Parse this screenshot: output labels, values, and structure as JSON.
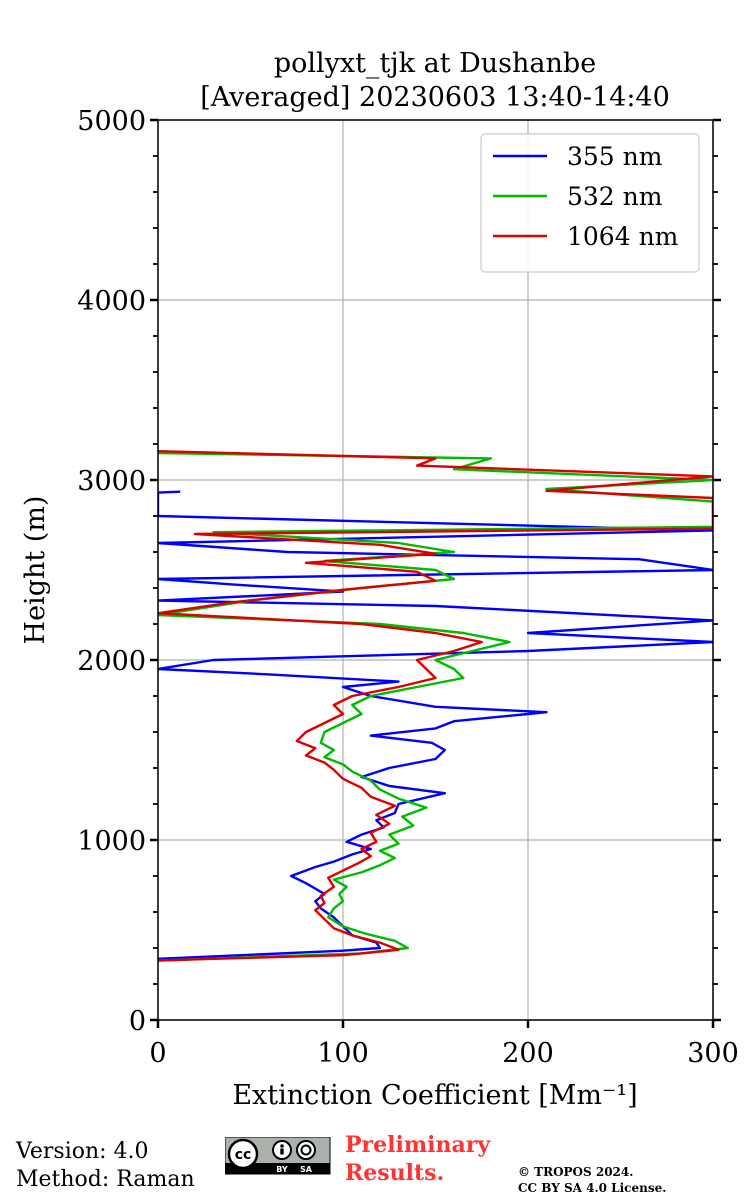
{
  "chart_data": {
    "type": "line",
    "title": "pollyxt_tjk at Dushanbe",
    "subtitle": "[Averaged] 20230603 13:40-14:40",
    "xlabel": "Extinction Coefficient [Mm⁻¹]",
    "ylabel": "Height (m)",
    "xlim": [
      0,
      300
    ],
    "ylim": [
      0,
      5000
    ],
    "xticks": [
      0,
      100,
      200,
      300
    ],
    "yticks": [
      0,
      1000,
      2000,
      3000,
      4000,
      5000
    ],
    "grid": true,
    "legend_position": "top-right",
    "series": [
      {
        "name": "355 nm",
        "color": "#0000ff",
        "points": [
          [
            0,
            340
          ],
          [
            45,
            360
          ],
          [
            100,
            385
          ],
          [
            120,
            400
          ],
          [
            118,
            430
          ],
          [
            105,
            470
          ],
          [
            100,
            520
          ],
          [
            95,
            570
          ],
          [
            88,
            620
          ],
          [
            85,
            660
          ],
          [
            90,
            700
          ],
          [
            80,
            760
          ],
          [
            72,
            800
          ],
          [
            85,
            850
          ],
          [
            95,
            880
          ],
          [
            105,
            920
          ],
          [
            115,
            950
          ],
          [
            102,
            990
          ],
          [
            110,
            1030
          ],
          [
            122,
            1070
          ],
          [
            118,
            1110
          ],
          [
            128,
            1150
          ],
          [
            130,
            1200
          ],
          [
            155,
            1260
          ],
          [
            125,
            1300
          ],
          [
            110,
            1350
          ],
          [
            125,
            1400
          ],
          [
            150,
            1450
          ],
          [
            155,
            1500
          ],
          [
            148,
            1540
          ],
          [
            115,
            1580
          ],
          [
            150,
            1620
          ],
          [
            160,
            1660
          ],
          [
            200,
            1700
          ],
          [
            210,
            1710
          ],
          [
            150,
            1740
          ],
          [
            115,
            1800
          ],
          [
            100,
            1850
          ],
          [
            130,
            1880
          ],
          [
            60,
            1920
          ],
          [
            0,
            1950
          ],
          [
            30,
            2000
          ],
          [
            200,
            2050
          ],
          [
            300,
            2100
          ],
          [
            200,
            2150
          ],
          [
            300,
            2220
          ],
          [
            150,
            2300
          ],
          [
            0,
            2330
          ],
          [
            100,
            2380
          ],
          [
            40,
            2420
          ],
          [
            0,
            2450
          ],
          [
            300,
            2500
          ],
          [
            260,
            2560
          ],
          [
            70,
            2600
          ],
          [
            0,
            2650
          ],
          [
            300,
            2720
          ],
          [
            0,
            2800
          ],
          [
            0,
            2930
          ],
          [
            12,
            2935
          ]
        ]
      },
      {
        "name": "532 nm",
        "color": "#00bb00",
        "points": [
          [
            0,
            330
          ],
          [
            40,
            345
          ],
          [
            110,
            370
          ],
          [
            135,
            400
          ],
          [
            128,
            440
          ],
          [
            112,
            480
          ],
          [
            100,
            520
          ],
          [
            92,
            570
          ],
          [
            95,
            620
          ],
          [
            100,
            660
          ],
          [
            98,
            700
          ],
          [
            102,
            740
          ],
          [
            95,
            780
          ],
          [
            110,
            820
          ],
          [
            120,
            860
          ],
          [
            128,
            900
          ],
          [
            120,
            940
          ],
          [
            130,
            980
          ],
          [
            125,
            1030
          ],
          [
            138,
            1080
          ],
          [
            132,
            1130
          ],
          [
            145,
            1180
          ],
          [
            130,
            1230
          ],
          [
            120,
            1280
          ],
          [
            115,
            1330
          ],
          [
            105,
            1380
          ],
          [
            100,
            1420
          ],
          [
            90,
            1460
          ],
          [
            95,
            1500
          ],
          [
            88,
            1540
          ],
          [
            90,
            1600
          ],
          [
            100,
            1650
          ],
          [
            110,
            1700
          ],
          [
            105,
            1750
          ],
          [
            115,
            1800
          ],
          [
            140,
            1850
          ],
          [
            165,
            1900
          ],
          [
            160,
            1950
          ],
          [
            150,
            2000
          ],
          [
            170,
            2050
          ],
          [
            190,
            2100
          ],
          [
            165,
            2150
          ],
          [
            120,
            2200
          ],
          [
            0,
            2250
          ],
          [
            50,
            2330
          ],
          [
            110,
            2400
          ],
          [
            160,
            2450
          ],
          [
            150,
            2500
          ],
          [
            90,
            2550
          ],
          [
            160,
            2600
          ],
          [
            130,
            2650
          ],
          [
            30,
            2710
          ],
          [
            300,
            2740
          ],
          [
            300,
            2880
          ],
          [
            210,
            2950
          ],
          [
            300,
            3000
          ],
          [
            160,
            3060
          ],
          [
            180,
            3120
          ],
          [
            0,
            3150
          ]
        ]
      },
      {
        "name": "1064 nm",
        "color": "#dd0000",
        "points": [
          [
            0,
            330
          ],
          [
            30,
            340
          ],
          [
            100,
            360
          ],
          [
            130,
            390
          ],
          [
            120,
            430
          ],
          [
            105,
            470
          ],
          [
            95,
            510
          ],
          [
            90,
            560
          ],
          [
            85,
            610
          ],
          [
            90,
            650
          ],
          [
            88,
            690
          ],
          [
            95,
            740
          ],
          [
            92,
            790
          ],
          [
            100,
            830
          ],
          [
            108,
            870
          ],
          [
            115,
            910
          ],
          [
            110,
            950
          ],
          [
            118,
            990
          ],
          [
            115,
            1040
          ],
          [
            125,
            1090
          ],
          [
            118,
            1140
          ],
          [
            128,
            1190
          ],
          [
            115,
            1240
          ],
          [
            110,
            1290
          ],
          [
            100,
            1340
          ],
          [
            95,
            1390
          ],
          [
            90,
            1430
          ],
          [
            80,
            1470
          ],
          [
            85,
            1510
          ],
          [
            75,
            1550
          ],
          [
            80,
            1600
          ],
          [
            90,
            1650
          ],
          [
            100,
            1700
          ],
          [
            95,
            1750
          ],
          [
            105,
            1800
          ],
          [
            130,
            1850
          ],
          [
            150,
            1900
          ],
          [
            145,
            1950
          ],
          [
            140,
            2000
          ],
          [
            160,
            2050
          ],
          [
            175,
            2100
          ],
          [
            150,
            2150
          ],
          [
            110,
            2200
          ],
          [
            0,
            2260
          ],
          [
            40,
            2320
          ],
          [
            100,
            2390
          ],
          [
            150,
            2440
          ],
          [
            140,
            2490
          ],
          [
            80,
            2540
          ],
          [
            150,
            2590
          ],
          [
            120,
            2640
          ],
          [
            20,
            2700
          ],
          [
            300,
            2730
          ],
          [
            300,
            2900
          ],
          [
            210,
            2940
          ],
          [
            300,
            3020
          ],
          [
            140,
            3080
          ],
          [
            150,
            3120
          ],
          [
            0,
            3160
          ]
        ]
      }
    ]
  },
  "footer": {
    "version": "Version: 4.0",
    "method": "Method: Raman",
    "preliminary_line1": "Preliminary",
    "preliminary_line2": "Results.",
    "copyright_line1": "© TROPOS 2024.",
    "copyright_line2": "CC BY SA 4.0 License.",
    "license_badge_text": [
      "cc",
      "BY",
      "SA"
    ]
  }
}
